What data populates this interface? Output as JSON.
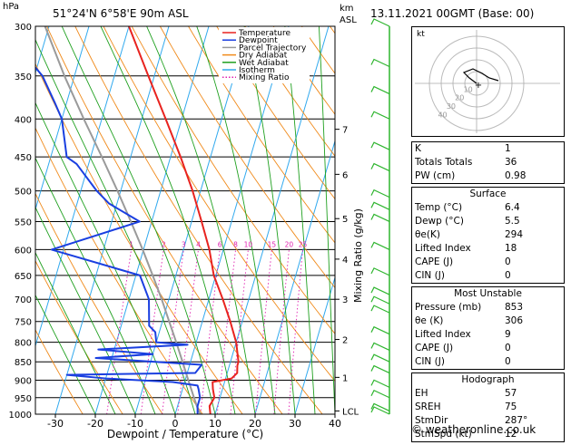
{
  "header": {
    "pressure_unit": "hPa",
    "location": "51°24'N 6°58'E 90m ASL",
    "height_unit": "km\nASL",
    "datetime": "13.11.2021 00GMT (Base: 00)"
  },
  "legend": [
    "Temperature",
    "Dewpoint",
    "Parcel Trajectory",
    "Dry Adiabat",
    "Wet Adiabat",
    "Isotherm",
    "Mixing Ratio"
  ],
  "colors": {
    "temperature": "#e8231f",
    "dewpoint": "#1a3fe0",
    "parcel": "#9a9a9a",
    "dry_adiabat": "#f08a1a",
    "wet_adiabat": "#1fa01f",
    "isotherm": "#31a9ee",
    "mixing_ratio": "#e020b0",
    "wind_barb": "#2fb52f"
  },
  "chart_data": {
    "type": "skew-t",
    "xlabel": "Dewpoint / Temperature (°C)",
    "ylabel_right": "Mixing Ratio (g/kg)",
    "xlim": [
      -35,
      40
    ],
    "x_ticks": [
      -30,
      -20,
      -10,
      0,
      10,
      20,
      30,
      40
    ],
    "pressure_ticks": [
      300,
      350,
      400,
      450,
      500,
      550,
      600,
      650,
      700,
      750,
      800,
      850,
      900,
      950,
      1000
    ],
    "height_ticks": [
      {
        "km": "1",
        "p": 892
      },
      {
        "km": "2",
        "p": 793
      },
      {
        "km": "3",
        "p": 700
      },
      {
        "km": "4",
        "p": 618
      },
      {
        "km": "5",
        "p": 545
      },
      {
        "km": "6",
        "p": 475
      },
      {
        "km": "7",
        "p": 413
      },
      {
        "km": "LCL",
        "p": 990
      }
    ],
    "mixing_ratio_labels": [
      "1",
      "2",
      "3",
      "4",
      "6",
      "8",
      "10",
      "15",
      "20",
      "25"
    ],
    "temperature": [
      {
        "p": 1000,
        "t": 8.8
      },
      {
        "p": 975,
        "t": 8.0
      },
      {
        "p": 950,
        "t": 8.6
      },
      {
        "p": 925,
        "t": 7.6
      },
      {
        "p": 905,
        "t": 7.0
      },
      {
        "p": 895,
        "t": 11.5
      },
      {
        "p": 880,
        "t": 12.5
      },
      {
        "p": 860,
        "t": 12.0
      },
      {
        "p": 850,
        "t": 12.0
      },
      {
        "p": 800,
        "t": 10.0
      },
      {
        "p": 750,
        "t": 7.0
      },
      {
        "p": 700,
        "t": 3.5
      },
      {
        "p": 650,
        "t": -0.5
      },
      {
        "p": 600,
        "t": -3.5
      },
      {
        "p": 550,
        "t": -7.5
      },
      {
        "p": 500,
        "t": -12.0
      },
      {
        "p": 450,
        "t": -17.5
      },
      {
        "p": 400,
        "t": -24.0
      },
      {
        "p": 350,
        "t": -31.5
      },
      {
        "p": 300,
        "t": -40.0
      }
    ],
    "dewpoint": [
      {
        "p": 1000,
        "t": 5.6
      },
      {
        "p": 975,
        "t": 5.0
      },
      {
        "p": 950,
        "t": 5.0
      },
      {
        "p": 925,
        "t": 4.0
      },
      {
        "p": 915,
        "t": 3.5
      },
      {
        "p": 905,
        "t": -3.0
      },
      {
        "p": 895,
        "t": -20.0
      },
      {
        "p": 885,
        "t": -30.0
      },
      {
        "p": 880,
        "t": 2.0
      },
      {
        "p": 858,
        "t": 3.0
      },
      {
        "p": 848,
        "t": -12.0
      },
      {
        "p": 840,
        "t": -24.0
      },
      {
        "p": 830,
        "t": -10.0
      },
      {
        "p": 818,
        "t": -24.0
      },
      {
        "p": 806,
        "t": -2.0
      },
      {
        "p": 800,
        "t": -10.0
      },
      {
        "p": 775,
        "t": -11.0
      },
      {
        "p": 760,
        "t": -13.0
      },
      {
        "p": 700,
        "t": -15.0
      },
      {
        "p": 650,
        "t": -19.0
      },
      {
        "p": 600,
        "t": -43.0
      },
      {
        "p": 550,
        "t": -23.0
      },
      {
        "p": 520,
        "t": -32.0
      },
      {
        "p": 500,
        "t": -36.0
      },
      {
        "p": 460,
        "t": -43.0
      },
      {
        "p": 450,
        "t": -46.0
      },
      {
        "p": 400,
        "t": -50.0
      },
      {
        "p": 380,
        "t": -53.0
      },
      {
        "p": 350,
        "t": -58.0
      },
      {
        "p": 300,
        "t": -72.0
      }
    ],
    "parcel": [
      {
        "p": 1000,
        "t": 6.4
      },
      {
        "p": 990,
        "t": 5.6
      },
      {
        "p": 950,
        "t": 3.5
      },
      {
        "p": 900,
        "t": 0.8
      },
      {
        "p": 850,
        "t": -2.0
      },
      {
        "p": 800,
        "t": -5.0
      },
      {
        "p": 750,
        "t": -8.3
      },
      {
        "p": 700,
        "t": -11.8
      },
      {
        "p": 650,
        "t": -15.8
      },
      {
        "p": 600,
        "t": -20.2
      },
      {
        "p": 550,
        "t": -25.2
      },
      {
        "p": 500,
        "t": -30.8
      },
      {
        "p": 450,
        "t": -37.2
      },
      {
        "p": 400,
        "t": -44.5
      },
      {
        "p": 350,
        "t": -52.5
      },
      {
        "p": 300,
        "t": -61.0
      }
    ],
    "wind_levels": [
      300,
      340,
      370,
      400,
      440,
      470,
      510,
      530,
      550,
      600,
      650,
      690,
      710,
      730,
      780,
      820,
      850,
      880,
      920,
      950,
      990,
      1000
    ],
    "hodograph": {
      "rings": [
        "10",
        "20",
        "30",
        "40"
      ],
      "label": "kt"
    }
  },
  "indices": {
    "rows": [
      {
        "label": "K",
        "value": "1"
      },
      {
        "label": "Totals Totals",
        "value": "36"
      },
      {
        "label": "PW (cm)",
        "value": "0.98"
      }
    ]
  },
  "surface": {
    "title": "Surface",
    "rows": [
      {
        "label": "Temp (°C)",
        "value": "6.4"
      },
      {
        "label": "Dewp (°C)",
        "value": "5.5"
      },
      {
        "label": "θe(K)",
        "value": "294"
      },
      {
        "label": "Lifted Index",
        "value": "18"
      },
      {
        "label": "CAPE (J)",
        "value": "0"
      },
      {
        "label": "CIN (J)",
        "value": "0"
      }
    ]
  },
  "most_unstable": {
    "title": "Most Unstable",
    "rows": [
      {
        "label": "Pressure (mb)",
        "value": "853"
      },
      {
        "label": "θe (K)",
        "value": "306"
      },
      {
        "label": "Lifted Index",
        "value": "9"
      },
      {
        "label": "CAPE (J)",
        "value": "0"
      },
      {
        "label": "CIN (J)",
        "value": "0"
      }
    ]
  },
  "hodograph_table": {
    "title": "Hodograph",
    "rows": [
      {
        "label": "EH",
        "value": "57"
      },
      {
        "label": "SREH",
        "value": "75"
      },
      {
        "label": "StmDir",
        "value": "287°"
      },
      {
        "label": "StmSpd (kt)",
        "value": "12"
      }
    ]
  },
  "footer": "© weatheronline.co.uk"
}
